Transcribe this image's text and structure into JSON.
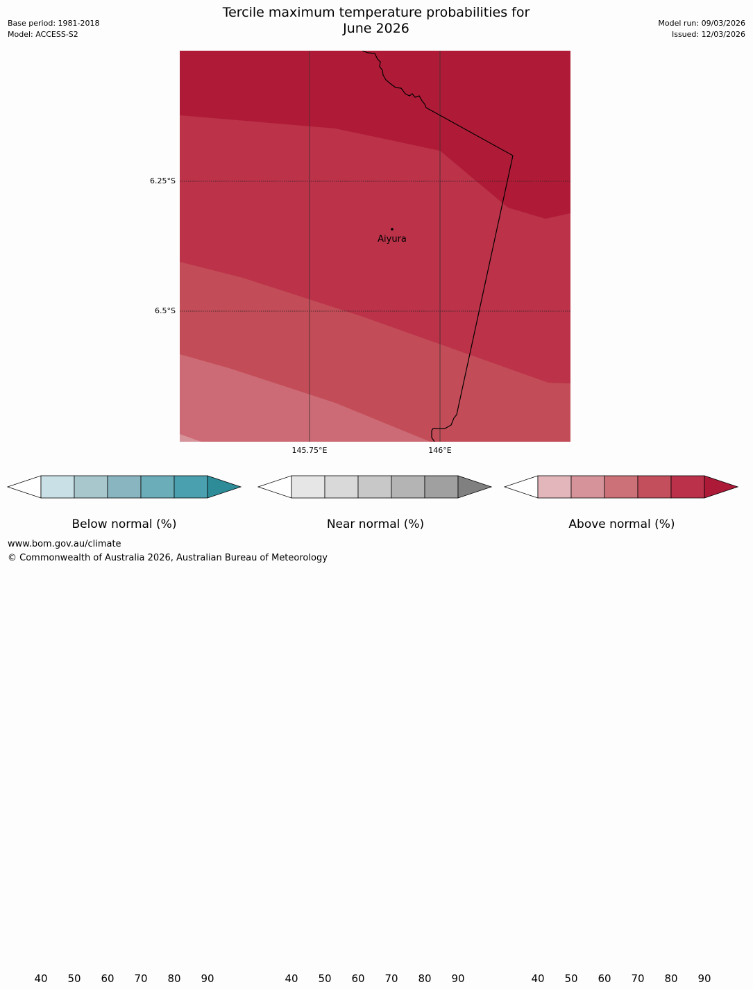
{
  "title_line1": "Tercile maximum temperature probabilities for",
  "title_line2": "June 2026",
  "meta_left": [
    "Base period: 1981-2018",
    "Model: ACCESS-S2"
  ],
  "meta_right": [
    "Model run: 09/03/2026",
    "Issued: 12/03/2026"
  ],
  "map": {
    "lat_labels": [
      "6.25°S",
      "6.5°S"
    ],
    "lon_labels": [
      "145.75°E",
      "146°E"
    ],
    "place": "Aiyura"
  },
  "legends": [
    {
      "label": "Below normal (%)",
      "ticks": [
        "40",
        "50",
        "60",
        "70",
        "80",
        "90"
      ],
      "colors": [
        "#c9e1e6",
        "#a7c7cc",
        "#89b5c1",
        "#6cadba",
        "#4aa0ae",
        "#2e8c99"
      ]
    },
    {
      "label": "Near normal (%)",
      "ticks": [
        "40",
        "50",
        "60",
        "70",
        "80",
        "90"
      ],
      "colors": [
        "#e6e6e6",
        "#d9d9d9",
        "#c8c8c8",
        "#b4b4b4",
        "#a0a0a0",
        "#808080"
      ]
    },
    {
      "label": "Above normal (%)",
      "ticks": [
        "40",
        "50",
        "60",
        "70",
        "80",
        "90"
      ],
      "colors": [
        "#e2b6bb",
        "#d6939a",
        "#cc7178",
        "#c24f5b",
        "#bb3149",
        "#ad1a38"
      ]
    }
  ],
  "footer": [
    "www.bom.gov.au/climate",
    "© Commonwealth of Australia 2026, Australian Bureau of Meteorology"
  ]
}
